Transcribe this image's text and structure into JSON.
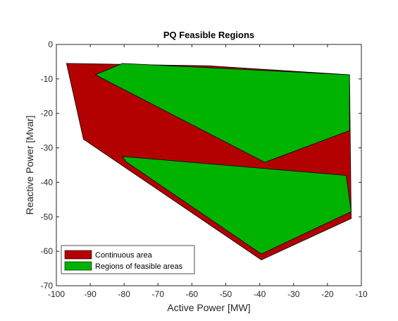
{
  "chart_data": {
    "type": "area",
    "title": "PQ Feasible Regions",
    "xlabel": "Active Power [MW]",
    "ylabel": "Reactive Power [Mvar]",
    "xlim": [
      -100,
      -10
    ],
    "ylim": [
      -70,
      0
    ],
    "xticks": [
      -100,
      -90,
      -80,
      -70,
      -60,
      -50,
      -40,
      -30,
      -20,
      -10
    ],
    "yticks": [
      0,
      -10,
      -20,
      -30,
      -40,
      -50,
      -60,
      -70
    ],
    "grid": false,
    "legend_position": "bottom-left",
    "series": [
      {
        "name": "Continuous area",
        "color": "#b30000",
        "polygons": [
          [
            [
              -97,
              -5.5
            ],
            [
              -55,
              -6.2
            ],
            [
              -13.5,
              -8.8
            ],
            [
              -13,
              -50.5
            ],
            [
              -39.5,
              -62.5
            ],
            [
              -92,
              -27.5
            ]
          ]
        ]
      },
      {
        "name": "Regions of feasible areas",
        "color": "#00b300",
        "polygons": [
          [
            [
              -88.5,
              -8.8
            ],
            [
              -80.5,
              -5.5
            ],
            [
              -13.5,
              -8.8
            ],
            [
              -13.5,
              -25
            ],
            [
              -38.5,
              -34.2
            ]
          ],
          [
            [
              -80.5,
              -32.5
            ],
            [
              -14.5,
              -38
            ],
            [
              -13,
              -48.5
            ],
            [
              -39.5,
              -60.8
            ],
            [
              -79.5,
              -34
            ]
          ]
        ]
      }
    ]
  }
}
